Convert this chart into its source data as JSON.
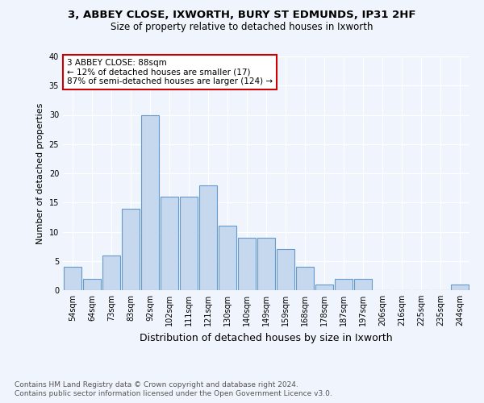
{
  "title1": "3, ABBEY CLOSE, IXWORTH, BURY ST EDMUNDS, IP31 2HF",
  "title2": "Size of property relative to detached houses in Ixworth",
  "xlabel": "Distribution of detached houses by size in Ixworth",
  "ylabel": "Number of detached properties",
  "categories": [
    "54sqm",
    "64sqm",
    "73sqm",
    "83sqm",
    "92sqm",
    "102sqm",
    "111sqm",
    "121sqm",
    "130sqm",
    "140sqm",
    "149sqm",
    "159sqm",
    "168sqm",
    "178sqm",
    "187sqm",
    "197sqm",
    "206sqm",
    "216sqm",
    "225sqm",
    "235sqm",
    "244sqm"
  ],
  "values": [
    4,
    2,
    6,
    14,
    30,
    16,
    16,
    18,
    11,
    9,
    9,
    7,
    4,
    1,
    2,
    2,
    0,
    0,
    0,
    0,
    1
  ],
  "bar_color": "#c5d8ee",
  "bar_edge_color": "#6699cc",
  "annotation_text": "3 ABBEY CLOSE: 88sqm\n← 12% of detached houses are smaller (17)\n87% of semi-detached houses are larger (124) →",
  "annotation_box_color": "white",
  "annotation_box_edge_color": "#cc0000",
  "ylim": [
    0,
    40
  ],
  "yticks": [
    0,
    5,
    10,
    15,
    20,
    25,
    30,
    35,
    40
  ],
  "footer1": "Contains HM Land Registry data © Crown copyright and database right 2024.",
  "footer2": "Contains public sector information licensed under the Open Government Licence v3.0.",
  "bg_color": "#f0f4fc",
  "plot_bg_color": "#f0f4fc",
  "grid_color": "#ffffff",
  "title1_fontsize": 9.5,
  "title2_fontsize": 8.5,
  "ylabel_fontsize": 8,
  "xlabel_fontsize": 9,
  "tick_fontsize": 7,
  "annot_fontsize": 7.5,
  "footer_fontsize": 6.5
}
